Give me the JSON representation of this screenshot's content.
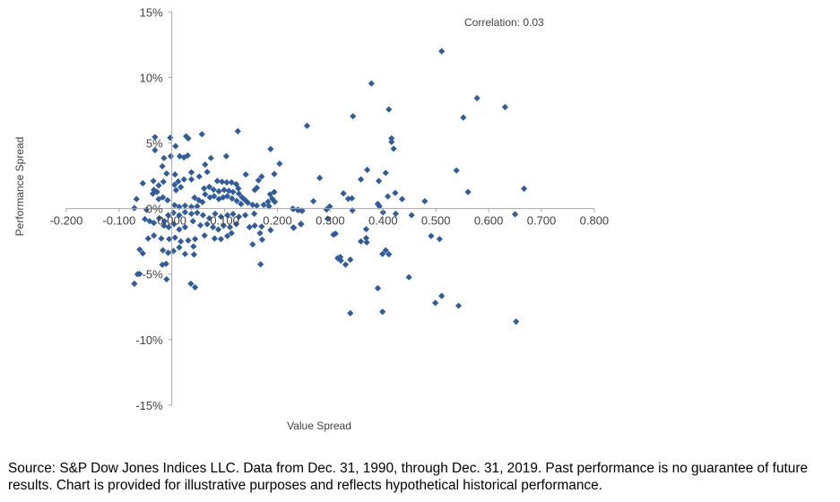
{
  "chart_data": {
    "type": "scatter",
    "title": "",
    "xlabel": "Value Spread",
    "ylabel": "Performance Spread",
    "xlim": [
      -0.2,
      0.8
    ],
    "ylim": [
      -15,
      15
    ],
    "x_ticks": [
      "-0.200",
      "-0.100",
      "0.000",
      "0.100",
      "0.200",
      "0.300",
      "0.400",
      "0.500",
      "0.600",
      "0.700",
      "0.800"
    ],
    "x_tick_values": [
      -0.2,
      -0.1,
      0,
      0.1,
      0.2,
      0.3,
      0.4,
      0.5,
      0.6,
      0.7,
      0.8
    ],
    "y_ticks": [
      "15%",
      "10%",
      "5%",
      "0%",
      "-5%",
      "-10%",
      "-15%"
    ],
    "y_tick_values": [
      15,
      10,
      5,
      0,
      -5,
      -10,
      -15
    ],
    "grid": false,
    "annotation": "Correlation: 0.03",
    "marker_color": "#2E5C9E",
    "points": [
      [
        0.511,
        12.0
      ],
      [
        0.378,
        9.54
      ],
      [
        0.578,
        8.42
      ],
      [
        0.631,
        7.74
      ],
      [
        0.411,
        7.56
      ],
      [
        0.343,
        7.04
      ],
      [
        0.552,
        6.94
      ],
      [
        0.256,
        6.31
      ],
      [
        0.416,
        5.35
      ],
      [
        0.416,
        5.08
      ],
      [
        0.42,
        4.56
      ],
      [
        0.539,
        2.9
      ],
      [
        0.37,
        2.95
      ],
      [
        0.405,
        2.72
      ],
      [
        0.358,
        2.22
      ],
      [
        0.392,
        2.1
      ],
      [
        0.28,
        2.33
      ],
      [
        0.667,
        1.51
      ],
      [
        0.561,
        1.26
      ],
      [
        0.325,
        1.15
      ],
      [
        0.423,
        1.19
      ],
      [
        0.409,
        0.92
      ],
      [
        0.334,
        0.74
      ],
      [
        0.341,
        0.78
      ],
      [
        0.436,
        0.72
      ],
      [
        0.268,
        0.56
      ],
      [
        0.479,
        0.56
      ],
      [
        0.39,
        0.35
      ],
      [
        0.393,
        0.17
      ],
      [
        0.299,
        0.15
      ],
      [
        0.293,
        -0.08
      ],
      [
        0.23,
        -0.05
      ],
      [
        0.24,
        -0.12
      ],
      [
        0.247,
        -0.17
      ],
      [
        0.342,
        -0.15
      ],
      [
        0.4,
        -0.29
      ],
      [
        0.424,
        -0.4
      ],
      [
        0.454,
        -0.51
      ],
      [
        0.65,
        -0.44
      ],
      [
        0.295,
        -0.78
      ],
      [
        0.23,
        -1.45
      ],
      [
        0.244,
        -1.19
      ],
      [
        0.368,
        -1.58
      ],
      [
        0.306,
        -1.99
      ],
      [
        0.31,
        -1.92
      ],
      [
        0.491,
        -2.1
      ],
      [
        0.507,
        -2.33
      ],
      [
        0.358,
        -2.51
      ],
      [
        0.368,
        -2.26
      ],
      [
        0.369,
        -2.58
      ],
      [
        0.314,
        -3.79
      ],
      [
        0.319,
        -3.7
      ],
      [
        0.32,
        -3.97
      ],
      [
        0.329,
        -4.28
      ],
      [
        0.338,
        -3.9
      ],
      [
        0.405,
        -3.19
      ],
      [
        0.399,
        -3.47
      ],
      [
        0.411,
        -3.49
      ],
      [
        0.449,
        -5.24
      ],
      [
        0.39,
        -6.08
      ],
      [
        0.511,
        -6.67
      ],
      [
        0.499,
        -7.2
      ],
      [
        0.543,
        -7.42
      ],
      [
        0.338,
        -7.99
      ],
      [
        0.399,
        -7.88
      ],
      [
        0.652,
        -8.63
      ],
      [
        0.125,
        5.9
      ],
      [
        0.057,
        5.67
      ],
      [
        -0.032,
        5.45
      ],
      [
        -0.003,
        5.4
      ],
      [
        0.027,
        5.51
      ],
      [
        0.031,
        5.35
      ],
      [
        0.007,
        4.76
      ],
      [
        -0.032,
        4.45
      ],
      [
        0.187,
        4.54
      ],
      [
        -0.015,
        3.85
      ],
      [
        -0.002,
        3.99
      ],
      [
        0.015,
        3.99
      ],
      [
        0.023,
        3.9
      ],
      [
        0.03,
        4.04
      ],
      [
        0.074,
        3.85
      ],
      [
        0.103,
        3.99
      ],
      [
        0.204,
        3.42
      ],
      [
        -0.018,
        3.22
      ],
      [
        0.063,
        3.35
      ],
      [
        0.067,
        2.79
      ],
      [
        0.037,
        2.76
      ],
      [
        0.14,
        2.6
      ],
      [
        -0.01,
        2.67
      ],
      [
        0.006,
        2.6
      ],
      [
        0.194,
        2.63
      ],
      [
        0.17,
        2.44
      ],
      [
        0.164,
        2.15
      ],
      [
        0.161,
        1.58
      ],
      [
        0.157,
        1.42
      ],
      [
        -0.055,
        1.92
      ],
      [
        -0.035,
        2.1
      ],
      [
        -0.016,
        2.04
      ],
      [
        -0.025,
        1.76
      ],
      [
        -0.034,
        1.42
      ],
      [
        -0.028,
        1.26
      ],
      [
        -0.036,
        1.13
      ],
      [
        0.012,
        2.06
      ],
      [
        0.023,
        2.22
      ],
      [
        0.005,
        1.81
      ],
      [
        0.017,
        1.63
      ],
      [
        0.008,
        1.4
      ],
      [
        0.052,
        2.44
      ],
      [
        0.037,
        2.22
      ],
      [
        0.086,
        2.1
      ],
      [
        0.095,
        2.04
      ],
      [
        0.104,
        1.99
      ],
      [
        0.113,
        1.99
      ],
      [
        0.122,
        1.85
      ],
      [
        0.126,
        1.53
      ],
      [
        0.061,
        1.53
      ],
      [
        0.071,
        1.65
      ],
      [
        0.079,
        1.44
      ],
      [
        0.089,
        1.31
      ],
      [
        0.099,
        1.42
      ],
      [
        0.108,
        1.35
      ],
      [
        0.116,
        1.26
      ],
      [
        0.127,
        1.13
      ],
      [
        0.133,
        0.85
      ],
      [
        0.139,
        0.63
      ],
      [
        0.144,
        0.44
      ],
      [
        0.153,
        0.28
      ],
      [
        0.161,
        0.22
      ],
      [
        0.063,
        1.08
      ],
      [
        0.072,
        0.85
      ],
      [
        0.08,
        0.94
      ],
      [
        0.089,
        0.72
      ],
      [
        0.097,
        0.85
      ],
      [
        0.105,
        0.94
      ],
      [
        0.114,
        0.76
      ],
      [
        0.123,
        0.58
      ],
      [
        0.131,
        0.35
      ],
      [
        0.043,
        0.83
      ],
      [
        0.051,
        0.63
      ],
      [
        0.058,
        0.49
      ],
      [
        0.048,
        0.17
      ],
      [
        0.037,
        0.13
      ],
      [
        0.025,
        0.22
      ],
      [
        0.014,
        0.13
      ],
      [
        0.005,
        0.26
      ],
      [
        -0.008,
        0.63
      ],
      [
        -0.017,
        0.85
      ],
      [
        -0.025,
        0.72
      ],
      [
        -0.067,
        0.72
      ],
      [
        -0.071,
        0.03
      ],
      [
        -0.048,
        -0.1
      ],
      [
        0.194,
        1.26
      ],
      [
        0.186,
        1.08
      ],
      [
        0.19,
        0.74
      ],
      [
        0.182,
        0.51
      ],
      [
        0.174,
        0.28
      ],
      [
        0.184,
        0.17
      ],
      [
        0.195,
        0.51
      ],
      [
        0.229,
        -0.01
      ],
      [
        0.238,
        -0.1
      ],
      [
        0.246,
        -0.17
      ],
      [
        0.245,
        -1.19
      ],
      [
        0.231,
        -1.47
      ],
      [
        -0.051,
        -0.81
      ],
      [
        -0.042,
        -0.97
      ],
      [
        -0.034,
        -1.1
      ],
      [
        -0.024,
        -0.74
      ],
      [
        -0.014,
        -0.97
      ],
      [
        -0.007,
        -0.51
      ],
      [
        0.003,
        -0.33
      ],
      [
        0.014,
        -0.51
      ],
      [
        0.025,
        -0.28
      ],
      [
        0.037,
        -0.4
      ],
      [
        0.048,
        -0.33
      ],
      [
        0.059,
        -0.51
      ],
      [
        0.071,
        -0.74
      ],
      [
        0.082,
        -0.4
      ],
      [
        0.093,
        -0.63
      ],
      [
        0.105,
        -0.51
      ],
      [
        0.116,
        -0.42
      ],
      [
        0.127,
        -0.63
      ],
      [
        0.139,
        -0.51
      ],
      [
        0.156,
        -0.4
      ],
      [
        -0.015,
        -1.31
      ],
      [
        -0.006,
        -1.42
      ],
      [
        0.004,
        -1.19
      ],
      [
        0.014,
        -1.6
      ],
      [
        0.025,
        -1.42
      ],
      [
        0.04,
        -0.97
      ],
      [
        0.054,
        -1.28
      ],
      [
        0.067,
        -1.19
      ],
      [
        0.078,
        -1.42
      ],
      [
        0.088,
        -1.6
      ],
      [
        0.098,
        -1.31
      ],
      [
        0.11,
        -1.42
      ],
      [
        0.122,
        -1.19
      ],
      [
        0.147,
        -1.42
      ],
      [
        0.157,
        -1.31
      ],
      [
        0.17,
        -1.38
      ],
      [
        0.187,
        -1.65
      ],
      [
        0.167,
        -1.88
      ],
      [
        0.171,
        -2.38
      ],
      [
        -0.045,
        -2.29
      ],
      [
        -0.034,
        -2.06
      ],
      [
        -0.02,
        -2.29
      ],
      [
        -0.005,
        -2.33
      ],
      [
        0.006,
        -2.22
      ],
      [
        0.017,
        -2.51
      ],
      [
        0.031,
        -2.44
      ],
      [
        0.044,
        -2.33
      ],
      [
        0.062,
        -2.06
      ],
      [
        0.081,
        -2.29
      ],
      [
        0.093,
        -2.33
      ],
      [
        0.105,
        -2.1
      ],
      [
        0.113,
        -1.88
      ],
      [
        -0.061,
        -3.13
      ],
      [
        -0.055,
        -3.42
      ],
      [
        -0.017,
        -3.19
      ],
      [
        -0.007,
        -3.38
      ],
      [
        0.003,
        -3.24
      ],
      [
        0.014,
        -2.97
      ],
      [
        0.025,
        -3.47
      ],
      [
        0.041,
        -2.9
      ],
      [
        0.042,
        -3.51
      ],
      [
        0.153,
        -2.74
      ],
      [
        -0.018,
        -4.29
      ],
      [
        -0.011,
        -4.22
      ],
      [
        0.168,
        -4.26
      ],
      [
        -0.065,
        -5.01
      ],
      [
        -0.061,
        -4.99
      ],
      [
        -0.01,
        -5.4
      ],
      [
        -0.071,
        -5.74
      ],
      [
        0.036,
        -5.74
      ],
      [
        0.044,
        -6.01
      ]
    ]
  },
  "footer": {
    "source": "Source: S&P Dow Jones Indices LLC. Data from Dec. 31, 1990, through Dec. 31, 2019. Past performance is no guarantee of future results. Chart is provided for illustrative purposes and reflects hypothetical historical performance."
  }
}
